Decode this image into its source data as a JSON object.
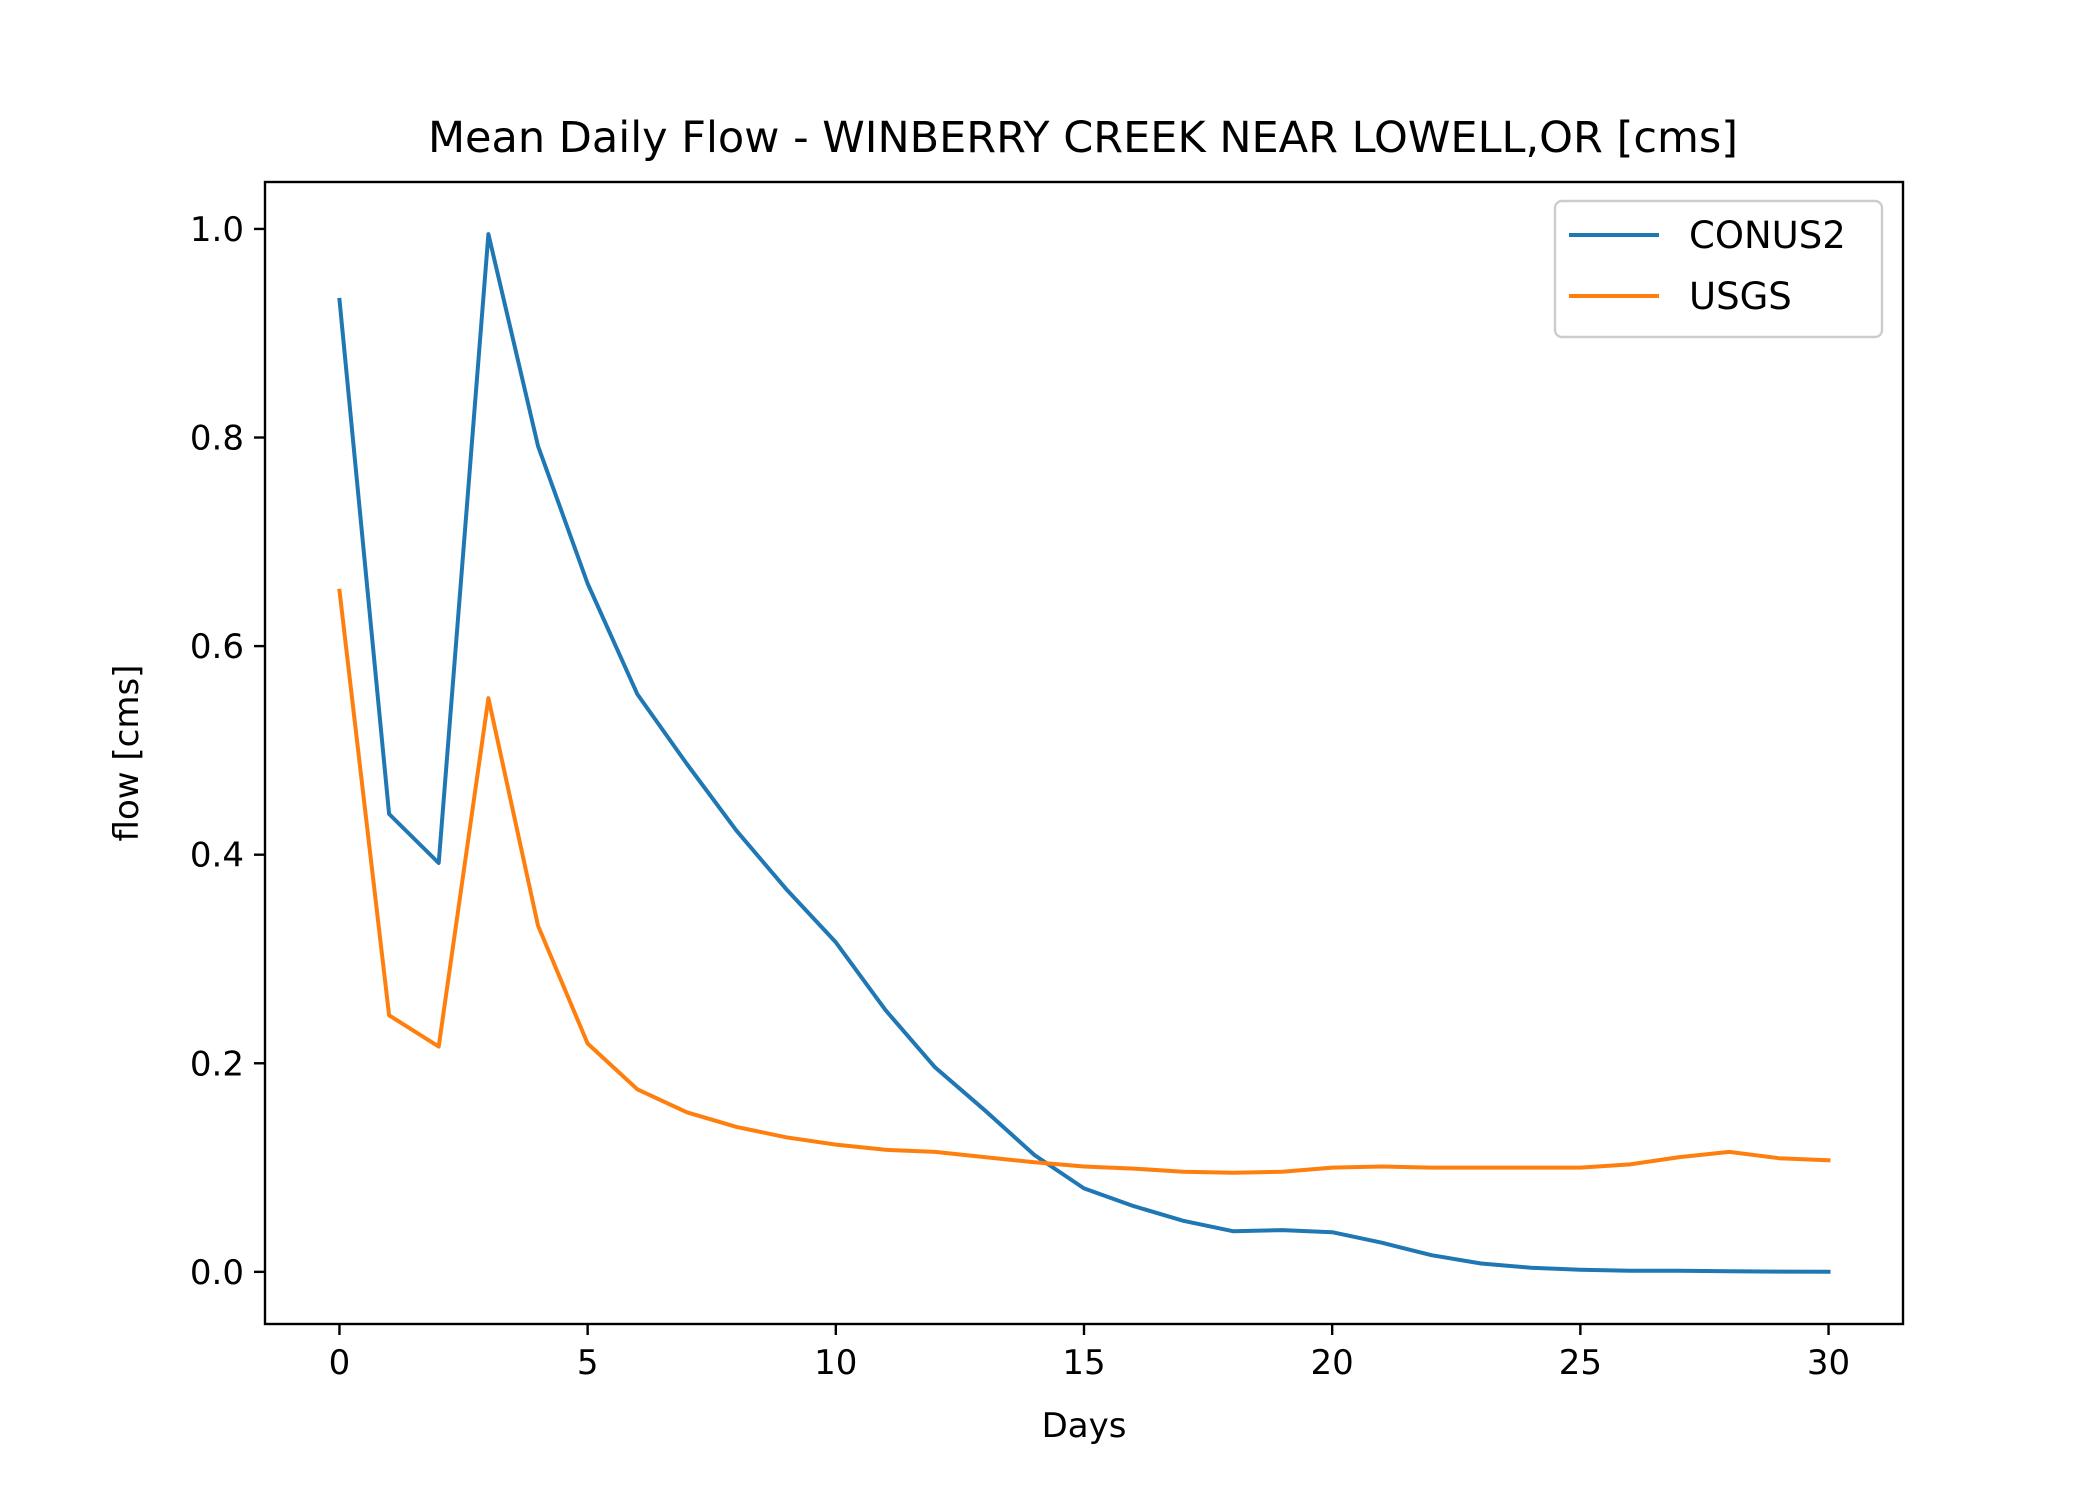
{
  "chart_data": {
    "type": "line",
    "title": "Mean Daily Flow - WINBERRY CREEK NEAR LOWELL,OR [cms]",
    "xlabel": "Days",
    "ylabel": "flow [cms]",
    "xlim": [
      -1.5,
      31.5
    ],
    "ylim": [
      -0.05,
      1.045
    ],
    "xticks": [
      0,
      5,
      10,
      15,
      20,
      25,
      30
    ],
    "xtick_labels": [
      "0",
      "5",
      "10",
      "15",
      "20",
      "25",
      "30"
    ],
    "yticks": [
      0.0,
      0.2,
      0.4,
      0.6,
      0.8,
      1.0
    ],
    "ytick_labels": [
      "0.0",
      "0.2",
      "0.4",
      "0.6",
      "0.8",
      "1.0"
    ],
    "grid": false,
    "legend_position": "top-right",
    "x": [
      0,
      1,
      2,
      3,
      4,
      5,
      6,
      7,
      8,
      9,
      10,
      11,
      12,
      13,
      14,
      15,
      16,
      17,
      18,
      19,
      20,
      21,
      22,
      23,
      24,
      25,
      26,
      27,
      28,
      29,
      30
    ],
    "series": [
      {
        "name": "CONUS2",
        "color": "#1f77b4",
        "values": [
          0.932,
          0.439,
          0.392,
          0.995,
          0.792,
          0.66,
          0.554,
          0.487,
          0.423,
          0.367,
          0.316,
          0.251,
          0.196,
          0.155,
          0.112,
          0.08,
          0.063,
          0.049,
          0.039,
          0.04,
          0.038,
          0.028,
          0.016,
          0.008,
          0.004,
          0.002,
          0.001,
          0.001,
          0.0005,
          0.0002,
          0.0001
        ]
      },
      {
        "name": "USGS",
        "color": "#ff7f0e",
        "values": [
          0.653,
          0.246,
          0.216,
          0.55,
          0.332,
          0.219,
          0.175,
          0.153,
          0.139,
          0.129,
          0.122,
          0.117,
          0.115,
          0.11,
          0.105,
          0.101,
          0.099,
          0.096,
          0.095,
          0.096,
          0.1,
          0.101,
          0.1,
          0.1,
          0.1,
          0.1,
          0.103,
          0.11,
          0.115,
          0.109,
          0.107
        ]
      }
    ]
  }
}
